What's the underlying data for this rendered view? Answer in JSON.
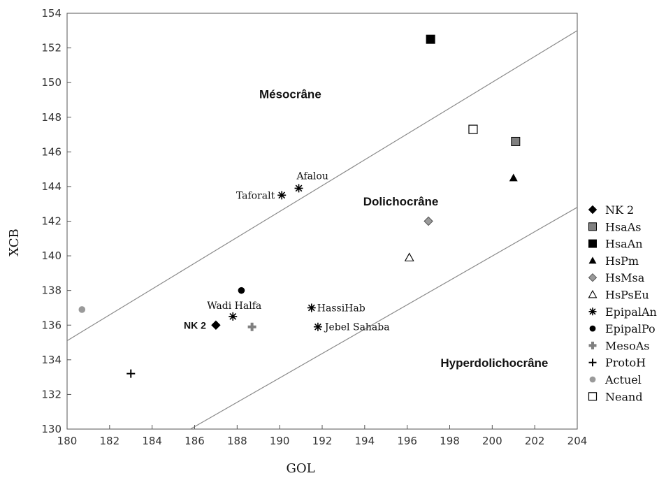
{
  "chart_data": {
    "type": "scatter",
    "xlabel": "GOL",
    "ylabel": "XCB",
    "xlim": [
      180,
      204
    ],
    "ylim": [
      130,
      154
    ],
    "x_ticks": [
      180,
      182,
      184,
      186,
      188,
      190,
      192,
      194,
      196,
      198,
      200,
      202,
      204
    ],
    "y_ticks": [
      130,
      132,
      134,
      136,
      138,
      140,
      142,
      144,
      146,
      148,
      150,
      152,
      154
    ],
    "grid": false,
    "legend_position": "right",
    "boundary_lines": [
      {
        "x1": 180,
        "y1": 135.1,
        "x2": 204,
        "y2": 153.0
      },
      {
        "x1": 185.8,
        "y1": 130,
        "x2": 204,
        "y2": 142.8
      }
    ],
    "regions": [
      {
        "label": "Mésocrâne",
        "x": 190.5,
        "y": 149.1
      },
      {
        "label": "Dolichocrâne",
        "x": 195.7,
        "y": 142.9
      },
      {
        "label": "Hyperdolichocrâne",
        "x": 200.1,
        "y": 133.6
      }
    ],
    "series": [
      {
        "name": "NK 2",
        "marker": "diamond",
        "color": "#000000",
        "points": [
          {
            "x": 187.0,
            "y": 136.0,
            "label": "NK 2"
          }
        ]
      },
      {
        "name": "HsaAs",
        "marker": "square",
        "color": "#808080",
        "points": [
          {
            "x": 201.1,
            "y": 146.6
          }
        ]
      },
      {
        "name": "HsaAn",
        "marker": "square",
        "color": "#000000",
        "points": [
          {
            "x": 197.1,
            "y": 152.5
          }
        ]
      },
      {
        "name": "HsPm",
        "marker": "triangle",
        "color": "#000000",
        "points": [
          {
            "x": 201.0,
            "y": 144.5
          }
        ]
      },
      {
        "name": "HsMsa",
        "marker": "diamond-open",
        "color": "#9a9a9a",
        "points": [
          {
            "x": 197.0,
            "y": 142.0
          }
        ]
      },
      {
        "name": "HsPsEu",
        "marker": "triangle-open",
        "color": "#000000",
        "points": [
          {
            "x": 196.1,
            "y": 139.9
          }
        ]
      },
      {
        "name": "EpipalAn",
        "marker": "asterisk",
        "color": "#000000",
        "points": [
          {
            "x": 190.1,
            "y": 143.5,
            "label": "Taforalt"
          },
          {
            "x": 190.9,
            "y": 143.9,
            "label": "Afalou"
          },
          {
            "x": 187.8,
            "y": 136.5,
            "label": "Wadi Halfa"
          },
          {
            "x": 191.5,
            "y": 137.0,
            "label": "HassiHab"
          },
          {
            "x": 191.8,
            "y": 135.9,
            "label": "Jebel Sahaba"
          }
        ]
      },
      {
        "name": "EpipalPo",
        "marker": "circle",
        "color": "#000000",
        "points": [
          {
            "x": 188.2,
            "y": 138.0
          }
        ]
      },
      {
        "name": "MesoAs",
        "marker": "plus-bold",
        "color": "#808080",
        "points": [
          {
            "x": 188.7,
            "y": 135.9
          }
        ]
      },
      {
        "name": "ProtoH",
        "marker": "plus",
        "color": "#000000",
        "points": [
          {
            "x": 183.0,
            "y": 133.2
          }
        ]
      },
      {
        "name": "Actuel",
        "marker": "circle",
        "color": "#9a9a9a",
        "points": [
          {
            "x": 180.7,
            "y": 136.9
          }
        ]
      },
      {
        "name": "Neand",
        "marker": "square-open",
        "color": "#000000",
        "points": [
          {
            "x": 199.1,
            "y": 147.3
          }
        ]
      }
    ]
  }
}
